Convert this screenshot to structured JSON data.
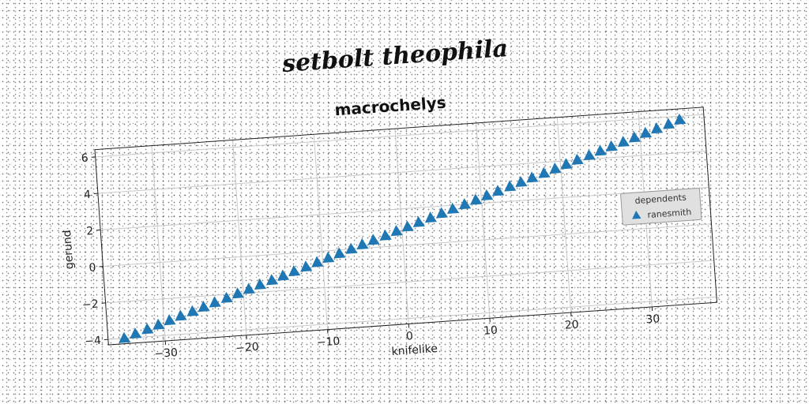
{
  "figure": {
    "suptitle": "setbolt theophila"
  },
  "chart_data": {
    "type": "scatter",
    "title": "macrochelys",
    "xlabel": "knifelike",
    "ylabel": "gerund",
    "xlim": [
      -37,
      38
    ],
    "ylim": [
      -4.3,
      6.4
    ],
    "xticks": [
      -30,
      -20,
      -10,
      0,
      10,
      20,
      30
    ],
    "yticks": [
      -4,
      -2,
      0,
      2,
      4,
      6
    ],
    "xtick_labels": [
      "−30",
      "−20",
      "−10",
      "0",
      "10",
      "20",
      "30"
    ],
    "ytick_labels": [
      "−4",
      "−2",
      "0",
      "2",
      "4",
      "6"
    ],
    "grid": true,
    "legend": {
      "title": "dependents",
      "placement": "center-right"
    },
    "series": [
      {
        "name": "ranesmith",
        "marker": "triangle-up",
        "color": "#1f77b4",
        "x": [
          -35.0,
          -33.6,
          -32.1,
          -30.7,
          -29.3,
          -27.9,
          -26.4,
          -25.0,
          -23.6,
          -22.1,
          -20.7,
          -19.3,
          -17.9,
          -16.4,
          -15.0,
          -13.6,
          -12.1,
          -10.7,
          -9.3,
          -7.9,
          -6.4,
          -5.0,
          -3.6,
          -2.1,
          -0.7,
          0.7,
          2.1,
          3.6,
          5.0,
          6.4,
          7.9,
          9.3,
          10.7,
          12.1,
          13.6,
          15.0,
          16.4,
          17.9,
          19.3,
          20.7,
          22.1,
          23.6,
          25.0,
          26.4,
          27.9,
          29.3,
          30.7,
          32.1,
          33.6,
          35.0
        ],
        "y": [
          -4.0,
          -3.8,
          -3.6,
          -3.4,
          -3.2,
          -3.0,
          -2.8,
          -2.6,
          -2.4,
          -2.2,
          -2.0,
          -1.8,
          -1.6,
          -1.4,
          -1.2,
          -1.0,
          -0.8,
          -0.6,
          -0.4,
          -0.2,
          0.0,
          0.2,
          0.4,
          0.6,
          0.8,
          1.0,
          1.2,
          1.4,
          1.6,
          1.8,
          2.0,
          2.2,
          2.4,
          2.6,
          2.8,
          3.0,
          3.2,
          3.4,
          3.6,
          3.8,
          4.0,
          4.2,
          4.4,
          4.6,
          4.8,
          5.0,
          5.2,
          5.4,
          5.6,
          5.8
        ]
      }
    ]
  }
}
